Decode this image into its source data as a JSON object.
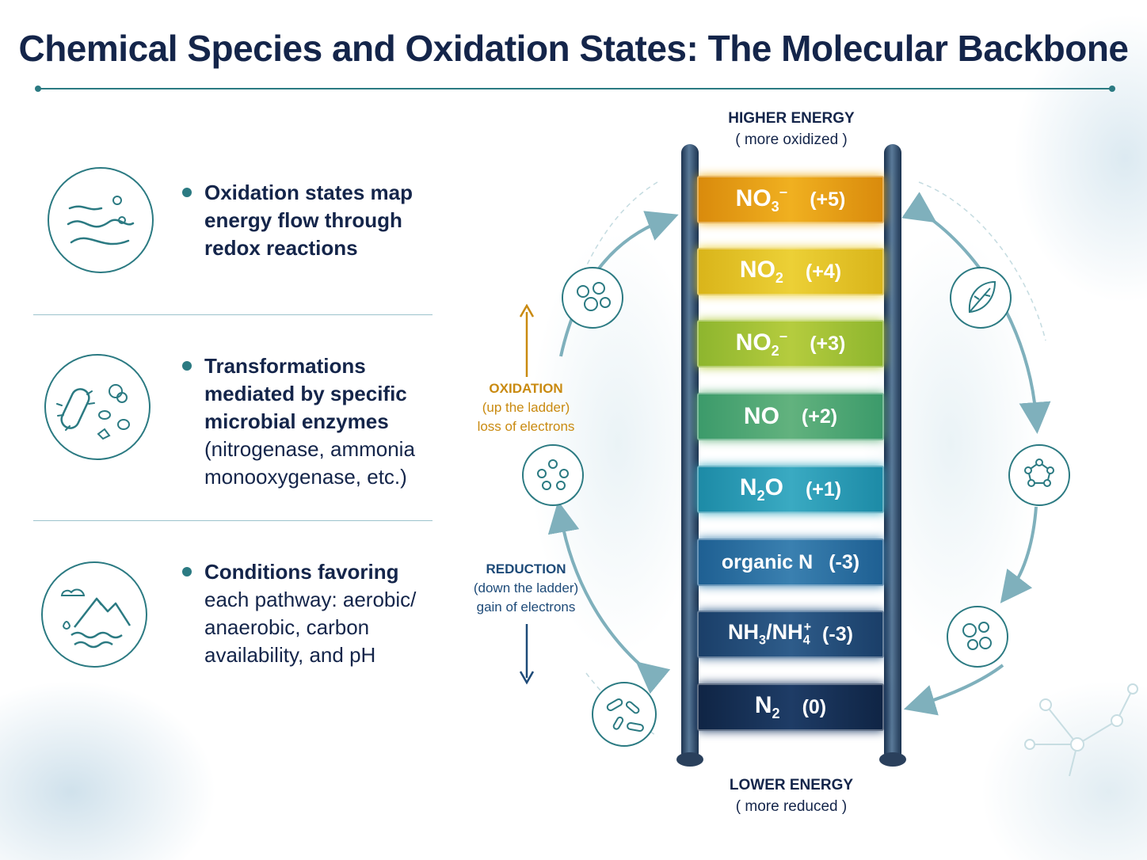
{
  "title": "Chemical Species and Oxidation States: The Molecular Backbone",
  "bullets": [
    {
      "lines": [
        "Oxidation states map",
        "energy flow through",
        "redox reactions"
      ],
      "icon": "river-icon"
    },
    {
      "lines": [
        "Transformations",
        "mediated by specific",
        "microbial enzymes"
      ],
      "extra_lines": [
        "(nitrogenase, ammonia",
        "monooxygenase, etc.)"
      ],
      "icon": "microbe-icon"
    },
    {
      "lines": [
        "Conditions favoring",
        "each pathway: aerobic/",
        "anaerobic, carbon",
        "availability, and pH"
      ],
      "icon": "landscape-icon"
    }
  ],
  "ladder": {
    "top_label": "HIGHER ENERGY",
    "top_sub": "( more oxidized )",
    "bottom_label": "LOWER ENERGY",
    "bottom_sub": "( more reduced )",
    "rungs": [
      {
        "base": "NO",
        "sub": "3",
        "sup": "−",
        "state": "(+5)",
        "color_start": "#d98a0c",
        "color_end": "#f0b020"
      },
      {
        "base": "NO",
        "sub": "2",
        "sup": "",
        "state": "(+4)",
        "color_start": "#d9b41a",
        "color_end": "#ecd036"
      },
      {
        "base": "NO",
        "sub": "2",
        "sup": "−",
        "state": "(+3)",
        "color_start": "#8db52e",
        "color_end": "#b5cc3e"
      },
      {
        "base": "NO",
        "sub": "",
        "sup": "",
        "state": "(+2)",
        "color_start": "#3b9a6a",
        "color_end": "#62b27e"
      },
      {
        "base": "N",
        "sub": "2",
        "sup": "",
        "tail": "O",
        "state": "(+1)",
        "color_start": "#1c8aa6",
        "color_end": "#3aaac2"
      },
      {
        "base": "organic N",
        "sub": "",
        "sup": "",
        "state": "(-3)",
        "color_start": "#1e5f92",
        "color_end": "#3a80b0"
      },
      {
        "base": "NH",
        "sub": "3",
        "sup": "",
        "tail": "/NH",
        "sub2": "4",
        "sup2": "+",
        "state": "(-3)",
        "color_start": "#1a3e68",
        "color_end": "#2e5c8a"
      },
      {
        "base": "N",
        "sub": "2",
        "sup": "",
        "state": "(0)",
        "color_start": "#0f2444",
        "color_end": "#1e3c66"
      }
    ]
  },
  "oxidation": {
    "label": "OXIDATION",
    "line1": "(up the ladder)",
    "line2": "loss of electrons",
    "color": "#c98a10"
  },
  "reduction": {
    "label": "REDUCTION",
    "line1": "(down the ladder)",
    "line2": "gain of electrons",
    "color": "#1d4a78"
  },
  "colors": {
    "accent": "#2b7a82",
    "navy": "#14254a",
    "cycle_arrow": "#7fb0bc"
  }
}
